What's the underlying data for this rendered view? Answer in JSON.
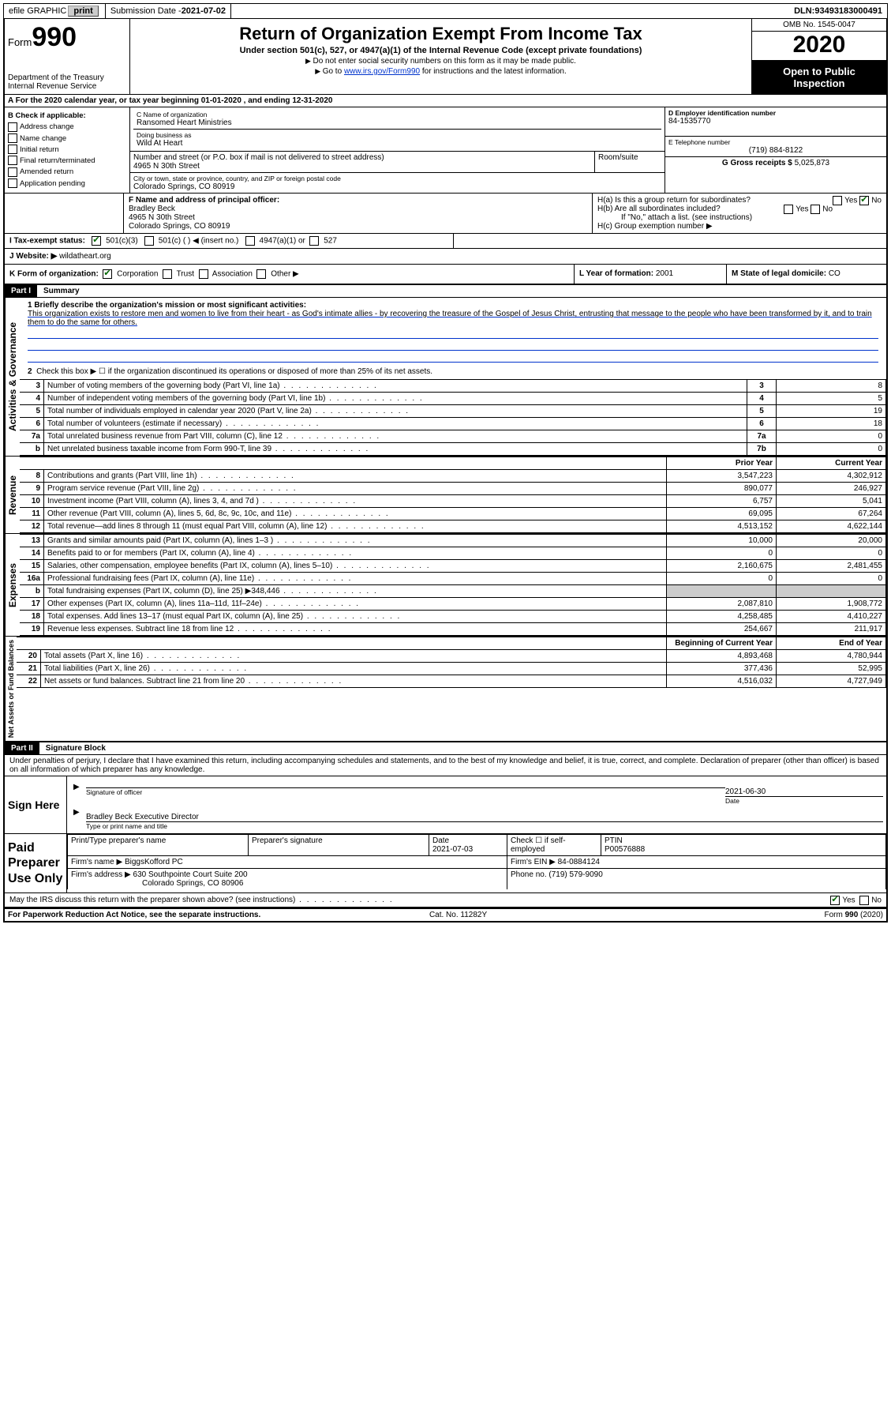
{
  "topbar": {
    "efile": "efile GRAPHIC",
    "print": "print",
    "sub_label": "Submission Date - ",
    "sub_date": "2021-07-02",
    "dln_label": "DLN: ",
    "dln": "93493183000491"
  },
  "header": {
    "form_prefix": "Form",
    "form_no": "990",
    "dept": "Department of the Treasury",
    "irs": "Internal Revenue Service",
    "title": "Return of Organization Exempt From Income Tax",
    "subtitle": "Under section 501(c), 527, or 4947(a)(1) of the Internal Revenue Code (except private foundations)",
    "note1": "Do not enter social security numbers on this form as it may be made public.",
    "note2_pre": "Go to ",
    "note2_link": "www.irs.gov/Form990",
    "note2_post": " for instructions and the latest information.",
    "omb": "OMB No. 1545-0047",
    "year": "2020",
    "inspect1": "Open to Public",
    "inspect2": "Inspection"
  },
  "rowA": "A For the 2020 calendar year, or tax year beginning 01-01-2020   , and ending 12-31-2020",
  "colB": {
    "title": "B Check if applicable:",
    "items": [
      "Address change",
      "Name change",
      "Initial return",
      "Final return/terminated",
      "Amended return",
      "Application pending"
    ]
  },
  "C": {
    "name_lbl": "C Name of organization",
    "name": "Ransomed Heart Ministries",
    "dba_lbl": "Doing business as",
    "dba": "Wild At Heart",
    "addr_lbl": "Number and street (or P.O. box if mail is not delivered to street address)",
    "room_lbl": "Room/suite",
    "addr": "4965 N 30th Street",
    "city_lbl": "City or town, state or province, country, and ZIP or foreign postal code",
    "city": "Colorado Springs, CO  80919"
  },
  "D": {
    "lbl": "D Employer identification number",
    "val": "84-1535770"
  },
  "E": {
    "lbl": "E Telephone number",
    "val": "(719) 884-8122"
  },
  "G": {
    "lbl": "G Gross receipts $ ",
    "val": "5,025,873"
  },
  "F": {
    "lbl": "F  Name and address of principal officer:",
    "name": "Bradley Beck",
    "addr1": "4965 N 30th Street",
    "addr2": "Colorado Springs, CO  80919"
  },
  "H": {
    "a": "H(a)  Is this a group return for subordinates?",
    "b": "H(b)  Are all subordinates included?",
    "b_note": "If \"No,\" attach a list. (see instructions)",
    "c": "H(c)  Group exemption number ▶",
    "yes": "Yes",
    "no": "No"
  },
  "I": {
    "lbl": "I   Tax-exempt status:",
    "opts": [
      "501(c)(3)",
      "501(c) (  ) ◀ (insert no.)",
      "4947(a)(1) or",
      "527"
    ]
  },
  "J": {
    "lbl": "J   Website: ▶ ",
    "val": "wildatheart.org"
  },
  "K": {
    "lbl": "K Form of organization:",
    "opts": [
      "Corporation",
      "Trust",
      "Association",
      "Other ▶"
    ]
  },
  "L": {
    "lbl": "L Year of formation: ",
    "val": "2001"
  },
  "M": {
    "lbl": "M State of legal domicile: ",
    "val": "CO"
  },
  "part1": {
    "hdr": "Part I",
    "title": "Summary",
    "line1_lbl": "1  Briefly describe the organization's mission or most significant activities:",
    "mission": "This organization exists to restore men and women to live from their heart - as God's intimate allies - by recovering the treasure of the Gospel of Jesus Christ, entrusting that message to the people who have been transformed by it, and to train them to do the same for others.",
    "line2": "Check this box ▶ ☐  if the organization discontinued its operations or disposed of more than 25% of its net assets.",
    "gov_lines": [
      {
        "n": "3",
        "d": "Number of voting members of the governing body (Part VI, line 1a)",
        "b": "3",
        "v": "8"
      },
      {
        "n": "4",
        "d": "Number of independent voting members of the governing body (Part VI, line 1b)",
        "b": "4",
        "v": "5"
      },
      {
        "n": "5",
        "d": "Total number of individuals employed in calendar year 2020 (Part V, line 2a)",
        "b": "5",
        "v": "19"
      },
      {
        "n": "6",
        "d": "Total number of volunteers (estimate if necessary)",
        "b": "6",
        "v": "18"
      },
      {
        "n": "7a",
        "d": "Total unrelated business revenue from Part VIII, column (C), line 12",
        "b": "7a",
        "v": "0"
      },
      {
        "n": "b",
        "d": "Net unrelated business taxable income from Form 990-T, line 39",
        "b": "7b",
        "v": "0"
      }
    ],
    "col_prior": "Prior Year",
    "col_curr": "Current Year",
    "rev_lines": [
      {
        "n": "8",
        "d": "Contributions and grants (Part VIII, line 1h)",
        "p": "3,547,223",
        "c": "4,302,912"
      },
      {
        "n": "9",
        "d": "Program service revenue (Part VIII, line 2g)",
        "p": "890,077",
        "c": "246,927"
      },
      {
        "n": "10",
        "d": "Investment income (Part VIII, column (A), lines 3, 4, and 7d )",
        "p": "6,757",
        "c": "5,041"
      },
      {
        "n": "11",
        "d": "Other revenue (Part VIII, column (A), lines 5, 6d, 8c, 9c, 10c, and 11e)",
        "p": "69,095",
        "c": "67,264"
      },
      {
        "n": "12",
        "d": "Total revenue—add lines 8 through 11 (must equal Part VIII, column (A), line 12)",
        "p": "4,513,152",
        "c": "4,622,144"
      }
    ],
    "exp_lines": [
      {
        "n": "13",
        "d": "Grants and similar amounts paid (Part IX, column (A), lines 1–3 )",
        "p": "10,000",
        "c": "20,000"
      },
      {
        "n": "14",
        "d": "Benefits paid to or for members (Part IX, column (A), line 4)",
        "p": "0",
        "c": "0"
      },
      {
        "n": "15",
        "d": "Salaries, other compensation, employee benefits (Part IX, column (A), lines 5–10)",
        "p": "2,160,675",
        "c": "2,481,455"
      },
      {
        "n": "16a",
        "d": "Professional fundraising fees (Part IX, column (A), line 11e)",
        "p": "0",
        "c": "0"
      },
      {
        "n": "b",
        "d": "Total fundraising expenses (Part IX, column (D), line 25) ▶348,446",
        "p": "",
        "c": "",
        "shade": true
      },
      {
        "n": "17",
        "d": "Other expenses (Part IX, column (A), lines 11a–11d, 11f–24e)",
        "p": "2,087,810",
        "c": "1,908,772"
      },
      {
        "n": "18",
        "d": "Total expenses. Add lines 13–17 (must equal Part IX, column (A), line 25)",
        "p": "4,258,485",
        "c": "4,410,227"
      },
      {
        "n": "19",
        "d": "Revenue less expenses. Subtract line 18 from line 12",
        "p": "254,667",
        "c": "211,917"
      }
    ],
    "col_begin": "Beginning of Current Year",
    "col_end": "End of Year",
    "net_lines": [
      {
        "n": "20",
        "d": "Total assets (Part X, line 16)",
        "p": "4,893,468",
        "c": "4,780,944"
      },
      {
        "n": "21",
        "d": "Total liabilities (Part X, line 26)",
        "p": "377,436",
        "c": "52,995"
      },
      {
        "n": "22",
        "d": "Net assets or fund balances. Subtract line 21 from line 20",
        "p": "4,516,032",
        "c": "4,727,949"
      }
    ],
    "tab_gov": "Activities & Governance",
    "tab_rev": "Revenue",
    "tab_exp": "Expenses",
    "tab_net": "Net Assets or Fund Balances"
  },
  "part2": {
    "hdr": "Part II",
    "title": "Signature Block",
    "decl": "Under penalties of perjury, I declare that I have examined this return, including accompanying schedules and statements, and to the best of my knowledge and belief, it is true, correct, and complete. Declaration of preparer (other than officer) is based on all information of which preparer has any knowledge.",
    "sign_here": "Sign Here",
    "sig_officer": "Signature of officer",
    "sig_date": "2021-06-30",
    "sig_date_lbl": "Date",
    "sig_name": "Bradley Beck  Executive Director",
    "sig_name_lbl": "Type or print name and title",
    "paid": "Paid Preparer Use Only",
    "prep_name_lbl": "Print/Type preparer's name",
    "prep_sig_lbl": "Preparer's signature",
    "prep_date_lbl": "Date",
    "prep_date": "2021-07-03",
    "prep_self": "Check ☐ if self-employed",
    "ptin_lbl": "PTIN",
    "ptin": "P00576888",
    "firm_name_lbl": "Firm's name    ▶ ",
    "firm_name": "BiggsKofford PC",
    "firm_ein_lbl": "Firm's EIN ▶ ",
    "firm_ein": "84-0884124",
    "firm_addr_lbl": "Firm's address ▶ ",
    "firm_addr1": "630 Southpointe Court Suite 200",
    "firm_addr2": "Colorado Springs, CO  80906",
    "phone_lbl": "Phone no. ",
    "phone": "(719) 579-9090",
    "discuss": "May the IRS discuss this return with the preparer shown above? (see instructions)",
    "yes": "Yes",
    "no": "No"
  },
  "footer": {
    "left": "For Paperwork Reduction Act Notice, see the separate instructions.",
    "mid": "Cat. No. 11282Y",
    "right": "Form 990 (2020)"
  }
}
